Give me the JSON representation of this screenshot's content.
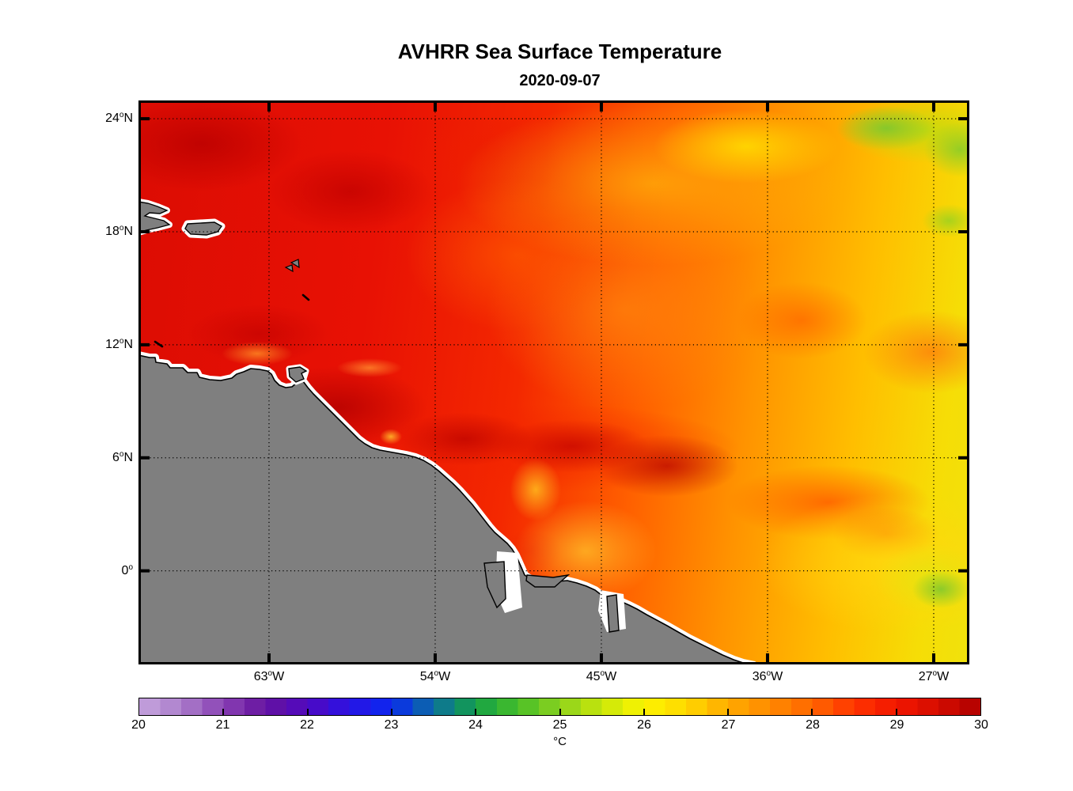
{
  "figure": {
    "title": "AVHRR Sea Surface Temperature",
    "subtitle": "2020-09-07"
  },
  "axes": {
    "lon": {
      "min": -70.07,
      "max": -25.07,
      "ticks": [
        {
          "value": -63,
          "deg": "63",
          "sup": "o",
          "hemi": "W"
        },
        {
          "value": -54,
          "deg": "54",
          "sup": "o",
          "hemi": "W"
        },
        {
          "value": -45,
          "deg": "45",
          "sup": "o",
          "hemi": "W"
        },
        {
          "value": -36,
          "deg": "36",
          "sup": "o",
          "hemi": "W"
        },
        {
          "value": -27,
          "deg": "27",
          "sup": "o",
          "hemi": "W"
        }
      ]
    },
    "lat": {
      "min": -4.97,
      "max": 24.97,
      "ticks": [
        {
          "value": 24,
          "deg": "24",
          "sup": "o",
          "hemi": "N"
        },
        {
          "value": 18,
          "deg": "18",
          "sup": "o",
          "hemi": "N"
        },
        {
          "value": 12,
          "deg": "12",
          "sup": "o",
          "hemi": "N"
        },
        {
          "value": 6,
          "deg": "6",
          "sup": "o",
          "hemi": "N"
        },
        {
          "value": 0,
          "deg": "0",
          "sup": "o",
          "hemi": ""
        }
      ]
    }
  },
  "colorbar": {
    "unit": "°C",
    "min": 20,
    "max": 30,
    "tick_labels": [
      "20",
      "21",
      "22",
      "23",
      "24",
      "25",
      "26",
      "27",
      "28",
      "29",
      "30"
    ],
    "interior_ticks": [
      21,
      22,
      23,
      24,
      25,
      26,
      27,
      28,
      29
    ],
    "stops": [
      {
        "v": 20.0,
        "c": "#c6a4de"
      },
      {
        "v": 20.5,
        "c": "#ab7ecb"
      },
      {
        "v": 21.0,
        "c": "#8a42b4"
      },
      {
        "v": 21.5,
        "c": "#64129e"
      },
      {
        "v": 22.0,
        "c": "#5008c0"
      },
      {
        "v": 22.5,
        "c": "#2a12e4"
      },
      {
        "v": 23.0,
        "c": "#0a28f0"
      },
      {
        "v": 23.5,
        "c": "#0c6ea0"
      },
      {
        "v": 24.0,
        "c": "#14a048"
      },
      {
        "v": 24.5,
        "c": "#46be28"
      },
      {
        "v": 25.0,
        "c": "#8cd21e"
      },
      {
        "v": 25.5,
        "c": "#c8e60a"
      },
      {
        "v": 26.0,
        "c": "#fcf400"
      },
      {
        "v": 26.5,
        "c": "#ffd800"
      },
      {
        "v": 27.0,
        "c": "#ffab00"
      },
      {
        "v": 27.5,
        "c": "#ff8a00"
      },
      {
        "v": 28.0,
        "c": "#ff6600"
      },
      {
        "v": 28.5,
        "c": "#ff3500"
      },
      {
        "v": 29.0,
        "c": "#f21600"
      },
      {
        "v": 29.5,
        "c": "#d40c00"
      },
      {
        "v": 30.0,
        "c": "#ae0000"
      }
    ]
  },
  "map": {
    "land_color": "#7f7f7f",
    "coast_halo_color": "#ffffff",
    "gridline_color": "#000000",
    "border_color": "#000000"
  },
  "chart_data": {
    "type": "heatmap",
    "title": "AVHRR Sea Surface Temperature",
    "date": "2020-09-07",
    "lon_range_deg": [
      -70.07,
      -25.07
    ],
    "lat_range_deg": [
      -4.97,
      24.97
    ],
    "lon_tick_values": [
      -63,
      -54,
      -45,
      -36,
      -27
    ],
    "lat_tick_values": [
      24,
      18,
      12,
      6,
      0
    ],
    "grid": "dotted",
    "legend_position": "bottom-colorbar",
    "colorbar": {
      "unit": "°C",
      "range": [
        20,
        30
      ],
      "tick_step": 1
    },
    "sst_grid": {
      "lons": [
        -69,
        -64,
        -59,
        -54,
        -49,
        -44,
        -39,
        -34,
        -29,
        -26
      ],
      "lats": [
        24,
        20,
        16,
        12,
        8,
        4,
        0,
        -4
      ],
      "values_c": [
        [
          29.1,
          29.2,
          28.9,
          28.6,
          28.1,
          27.5,
          27.0,
          26.5,
          26.0,
          25.6
        ],
        [
          29.2,
          29.3,
          29.0,
          28.7,
          28.2,
          27.7,
          27.2,
          26.7,
          26.3,
          26.1
        ],
        [
          29.2,
          29.3,
          29.0,
          28.7,
          28.3,
          27.8,
          27.4,
          27.0,
          26.7,
          26.5
        ],
        [
          29.1,
          29.3,
          29.2,
          28.8,
          28.4,
          28.0,
          27.6,
          27.3,
          27.0,
          26.8
        ],
        [
          null,
          null,
          29.4,
          29.0,
          28.7,
          28.8,
          28.2,
          27.6,
          27.2,
          27.0
        ],
        [
          null,
          null,
          null,
          28.9,
          28.8,
          28.8,
          28.4,
          27.8,
          27.4,
          27.3
        ],
        [
          null,
          null,
          null,
          null,
          27.4,
          27.8,
          27.2,
          26.9,
          26.6,
          26.4
        ],
        [
          null,
          null,
          null,
          null,
          null,
          28.6,
          27.6,
          26.9,
          26.4,
          26.2
        ]
      ],
      "null_means": "land"
    }
  }
}
